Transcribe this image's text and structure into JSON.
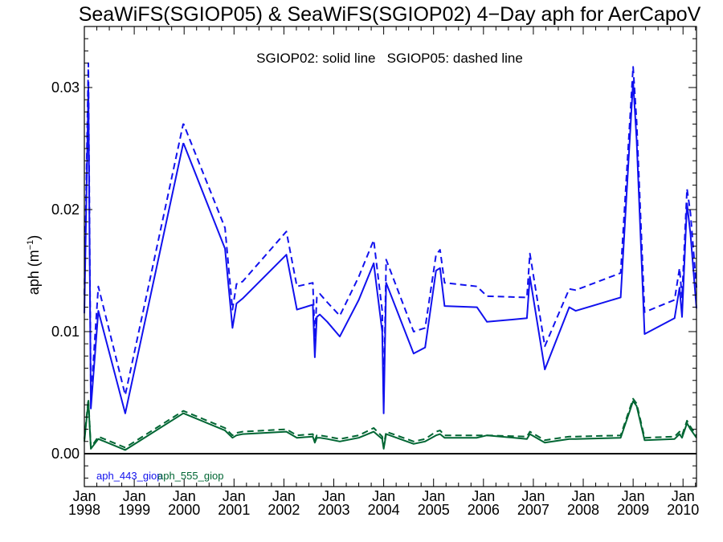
{
  "chart_data": {
    "type": "line",
    "title": "SeaWiFS(SGIOP05) & SeaWiFS(SGIOP02) 4−Day aph for AerCapoV",
    "annotation": "SGIOP02: solid line   SGIOP05: dashed line",
    "ylabel": "aph (m",
    "ylabel_sup": "−1",
    "ylabel_close": ")",
    "xlim": [
      1998.0,
      2010.27
    ],
    "ylim": [
      -0.0027,
      0.035
    ],
    "x_ticks": [
      {
        "value": 1998,
        "top": "Jan",
        "bottom": "1998"
      },
      {
        "value": 1999,
        "top": "Jan",
        "bottom": "1999"
      },
      {
        "value": 2000,
        "top": "Jan",
        "bottom": "2000"
      },
      {
        "value": 2001,
        "top": "Jan",
        "bottom": "2001"
      },
      {
        "value": 2002,
        "top": "Jan",
        "bottom": "2002"
      },
      {
        "value": 2003,
        "top": "Jan",
        "bottom": "2003"
      },
      {
        "value": 2004,
        "top": "Jan",
        "bottom": "2004"
      },
      {
        "value": 2005,
        "top": "Jan",
        "bottom": "2005"
      },
      {
        "value": 2006,
        "top": "Jan",
        "bottom": "2006"
      },
      {
        "value": 2007,
        "top": "Jan",
        "bottom": "2007"
      },
      {
        "value": 2008,
        "top": "Jan",
        "bottom": "2008"
      },
      {
        "value": 2009,
        "top": "Jan",
        "bottom": "2009"
      },
      {
        "value": 2010,
        "top": "Jan",
        "bottom": "2010"
      }
    ],
    "y_ticks": [
      {
        "value": 0.0,
        "label": "0.00"
      },
      {
        "value": 0.01,
        "label": "0.01"
      },
      {
        "value": 0.02,
        "label": "0.02"
      },
      {
        "value": 0.03,
        "label": "0.03"
      }
    ],
    "zero_line": 0.0,
    "legend": [
      {
        "label": "aph_443_giop",
        "color": "#1111ee"
      },
      {
        "label": "aph_555_giop",
        "color": "#006633"
      }
    ],
    "series": [
      {
        "name": "aph_443_giop",
        "model": "SGIOP02",
        "style": "solid",
        "color": "#1111ee",
        "x": [
          1998.0,
          1998.08,
          1998.13,
          1998.28,
          1998.82,
          1999.98,
          1999.99,
          2000.82,
          2000.97,
          2001.05,
          2001.17,
          2002.05,
          2002.26,
          2002.58,
          2002.62,
          2002.66,
          2002.72,
          2002.87,
          2003.12,
          2003.5,
          2003.8,
          2003.97,
          2004.0,
          2004.05,
          2004.6,
          2004.83,
          2005.05,
          2005.13,
          2005.22,
          2005.87,
          2006.07,
          2006.87,
          2006.93,
          2007.23,
          2007.72,
          2007.85,
          2008.75,
          2009.0,
          2009.07,
          2009.23,
          2009.83,
          2009.93,
          2009.98,
          2010.08,
          2010.15,
          2010.27
        ],
        "y": [
          0.0115,
          0.03,
          0.0037,
          0.0117,
          0.0033,
          0.0254,
          0.0254,
          0.0168,
          0.0103,
          0.0123,
          0.0127,
          0.0163,
          0.0118,
          0.0122,
          0.0079,
          0.0112,
          0.0114,
          0.0108,
          0.0096,
          0.0126,
          0.0156,
          0.01,
          0.0033,
          0.014,
          0.0082,
          0.0087,
          0.015,
          0.0152,
          0.0121,
          0.012,
          0.0108,
          0.0111,
          0.0145,
          0.0069,
          0.012,
          0.0117,
          0.0128,
          0.0305,
          0.0257,
          0.0098,
          0.0111,
          0.0136,
          0.0112,
          0.0205,
          0.018,
          0.0119
        ]
      },
      {
        "name": "aph_443_giop",
        "model": "SGIOP05",
        "style": "dashed",
        "color": "#1111ee",
        "x": [
          1998.0,
          1998.08,
          1998.13,
          1998.28,
          1998.82,
          1999.98,
          1999.99,
          2000.82,
          2000.97,
          2001.05,
          2001.17,
          2002.05,
          2002.26,
          2002.58,
          2002.62,
          2002.66,
          2002.72,
          2002.87,
          2003.12,
          2003.5,
          2003.8,
          2003.97,
          2004.0,
          2004.05,
          2004.6,
          2004.83,
          2005.05,
          2005.13,
          2005.22,
          2005.87,
          2006.07,
          2006.87,
          2006.93,
          2007.23,
          2007.72,
          2007.85,
          2008.75,
          2009.0,
          2009.07,
          2009.23,
          2009.83,
          2009.93,
          2009.98,
          2010.08,
          2010.15,
          2010.27
        ],
        "y": [
          0.013,
          0.032,
          0.0045,
          0.0137,
          0.0048,
          0.027,
          0.027,
          0.0185,
          0.0118,
          0.0139,
          0.0141,
          0.0182,
          0.0137,
          0.014,
          0.0095,
          0.0128,
          0.0131,
          0.0124,
          0.0113,
          0.0145,
          0.0175,
          0.0117,
          0.0042,
          0.0159,
          0.01,
          0.0103,
          0.0163,
          0.0167,
          0.014,
          0.0137,
          0.0129,
          0.0128,
          0.0164,
          0.0088,
          0.0135,
          0.0134,
          0.0148,
          0.0317,
          0.0272,
          0.0116,
          0.0126,
          0.0152,
          0.0128,
          0.0217,
          0.0197,
          0.0136
        ]
      },
      {
        "name": "aph_555_giop",
        "model": "SGIOP02",
        "style": "solid",
        "color": "#006633",
        "x": [
          1998.0,
          1998.08,
          1998.13,
          1998.28,
          1998.82,
          1999.98,
          1999.99,
          2000.82,
          2000.97,
          2001.05,
          2001.17,
          2002.05,
          2002.26,
          2002.58,
          2002.62,
          2002.66,
          2002.72,
          2002.87,
          2003.12,
          2003.5,
          2003.8,
          2003.97,
          2004.0,
          2004.05,
          2004.6,
          2004.83,
          2005.05,
          2005.13,
          2005.22,
          2005.87,
          2006.07,
          2006.87,
          2006.93,
          2007.23,
          2007.72,
          2007.85,
          2008.75,
          2009.0,
          2009.07,
          2009.23,
          2009.83,
          2009.93,
          2009.98,
          2010.08,
          2010.15,
          2010.27
        ],
        "y": [
          0.001,
          0.0043,
          0.0004,
          0.0012,
          0.0003,
          0.0033,
          0.0033,
          0.0019,
          0.0013,
          0.0015,
          0.0016,
          0.0018,
          0.0013,
          0.0014,
          0.0009,
          0.0013,
          0.0013,
          0.0012,
          0.001,
          0.0013,
          0.0018,
          0.0012,
          0.0004,
          0.0016,
          0.0008,
          0.001,
          0.0015,
          0.0016,
          0.0013,
          0.0013,
          0.0015,
          0.0012,
          0.0016,
          0.0009,
          0.0012,
          0.0012,
          0.0013,
          0.0043,
          0.0039,
          0.0011,
          0.0012,
          0.0016,
          0.0013,
          0.0025,
          0.002,
          0.0013
        ]
      },
      {
        "name": "aph_555_giop",
        "model": "SGIOP05",
        "style": "dashed",
        "color": "#006633",
        "x": [
          1998.0,
          1998.08,
          1998.13,
          1998.28,
          1998.82,
          1999.98,
          1999.99,
          2000.82,
          2000.97,
          2001.05,
          2001.17,
          2002.05,
          2002.26,
          2002.58,
          2002.62,
          2002.66,
          2002.72,
          2002.87,
          2003.12,
          2003.5,
          2003.8,
          2003.97,
          2004.0,
          2004.05,
          2004.6,
          2004.83,
          2005.05,
          2005.13,
          2005.22,
          2005.87,
          2006.07,
          2006.87,
          2006.93,
          2007.23,
          2007.72,
          2007.85,
          2008.75,
          2009.0,
          2009.07,
          2009.23,
          2009.83,
          2009.93,
          2009.98,
          2010.08,
          2010.15,
          2010.27
        ],
        "y": [
          0.0012,
          0.0045,
          0.0005,
          0.0014,
          0.0005,
          0.0035,
          0.0035,
          0.0021,
          0.0015,
          0.0017,
          0.0018,
          0.002,
          0.0015,
          0.0016,
          0.0011,
          0.0015,
          0.0015,
          0.0014,
          0.0012,
          0.0015,
          0.0021,
          0.0014,
          0.0006,
          0.0018,
          0.001,
          0.0012,
          0.0018,
          0.0019,
          0.0015,
          0.0015,
          0.0015,
          0.0014,
          0.0018,
          0.0011,
          0.0014,
          0.0014,
          0.0015,
          0.0045,
          0.0041,
          0.0013,
          0.0014,
          0.0018,
          0.0015,
          0.0027,
          0.0022,
          0.0015
        ]
      }
    ]
  }
}
